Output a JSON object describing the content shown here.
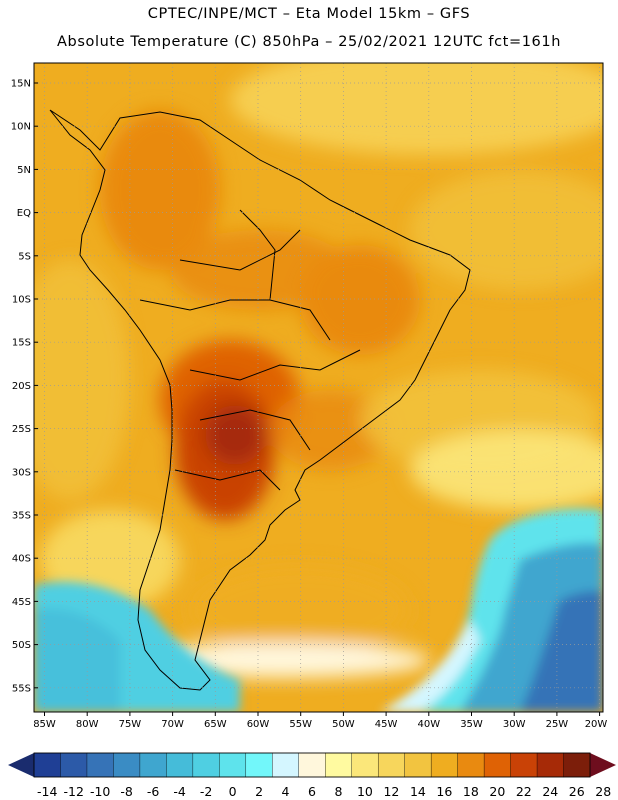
{
  "header": {
    "line1": "CPTEC/INPE/MCT –  Eta Model 15km – GFS",
    "line2": "Absolute Temperature (C) 850hPa – 25/02/2021 12UTC fct=161h"
  },
  "axes": {
    "lat_labels": [
      "15N",
      "10N",
      "5N",
      "EQ",
      "5S",
      "10S",
      "15S",
      "20S",
      "25S",
      "30S",
      "35S",
      "40S",
      "45S",
      "50S",
      "55S"
    ],
    "lon_labels": [
      "85W",
      "80W",
      "75W",
      "70W",
      "65W",
      "60W",
      "55W",
      "50W",
      "45W",
      "40W",
      "35W",
      "30W",
      "25W",
      "20W"
    ]
  },
  "colorbar": {
    "labels": [
      "-14",
      "-12",
      "-10",
      "-8",
      "-6",
      "-4",
      "-2",
      "0",
      "2",
      "4",
      "6",
      "8",
      "10",
      "12",
      "14",
      "16",
      "18",
      "20",
      "22",
      "24",
      "26",
      "28"
    ],
    "colors": [
      "#1f3f95",
      "#2c5aa8",
      "#3673b7",
      "#3a8cc4",
      "#3fa6cf",
      "#45bcd9",
      "#4fcfe2",
      "#5ee3ec",
      "#72f7fa",
      "#d4f6ff",
      "#fff7dc",
      "#fffaa0",
      "#fbe77a",
      "#f7d65c",
      "#f2c440",
      "#efad20",
      "#e98a10",
      "#df6205",
      "#c94206",
      "#a62a07",
      "#7c1e0a"
    ],
    "left_arrow_color": "#1a2c6e",
    "right_arrow_color": "#6e0e1e"
  }
}
